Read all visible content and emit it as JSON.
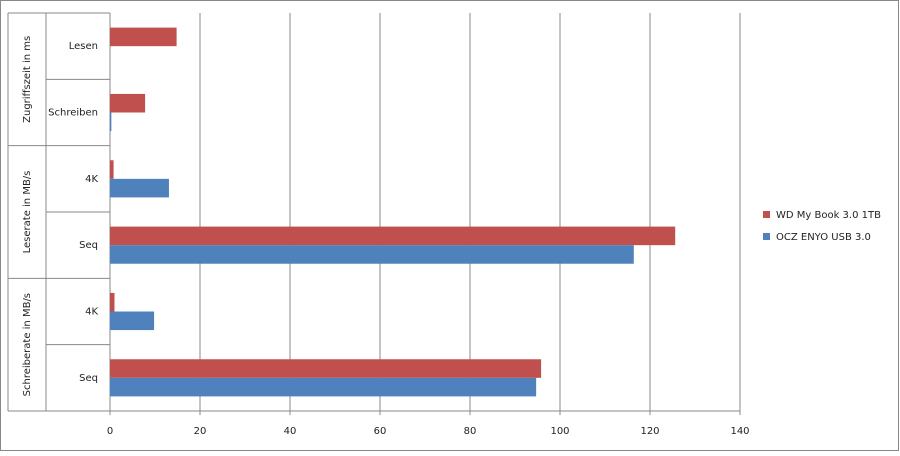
{
  "chart_data": {
    "type": "bar",
    "orientation": "horizontal",
    "groups": [
      {
        "name": "Zugriffszeit in ms",
        "categories": [
          "Lesen",
          "Schreiben"
        ]
      },
      {
        "name": "Leserate in MB/s",
        "categories": [
          "4K",
          "Seq"
        ]
      },
      {
        "name": "Schreiberate in MB/s",
        "categories": [
          "4K",
          "Seq"
        ]
      }
    ],
    "series": [
      {
        "name": "WD My Book 3.0 1TB",
        "color": "#c0504d",
        "values": [
          14.8,
          7.8,
          0.8,
          125.6,
          1.0,
          95.8
        ]
      },
      {
        "name": "OCZ ENYO  USB 3.0",
        "color": "#4f81bd",
        "values": [
          0,
          0.3,
          13.1,
          116.4,
          9.8,
          94.7
        ]
      }
    ],
    "xlim": [
      0,
      140
    ],
    "xticks": [
      0,
      20,
      40,
      60,
      80,
      100,
      120,
      140
    ],
    "grid": true,
    "legend": "right"
  }
}
